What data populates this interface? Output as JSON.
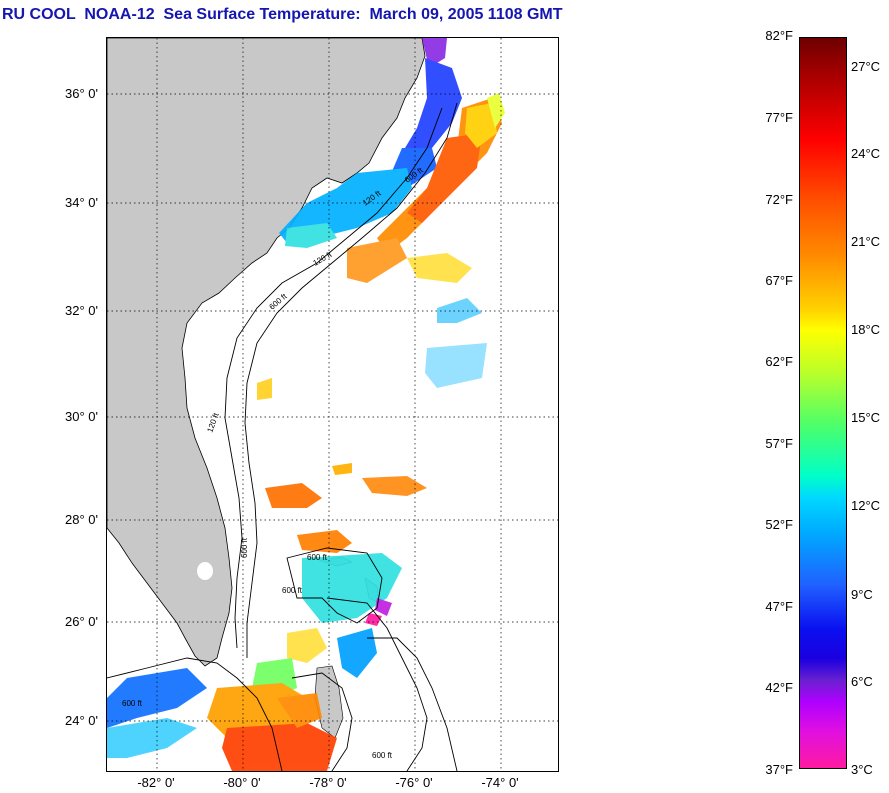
{
  "title": "RU COOL  NOAA-12  Sea Surface Temperature:  March 09, 2005 1108 GMT",
  "map": {
    "lat_labels": [
      "36° 0'",
      "34° 0'",
      "32° 0'",
      "30° 0'",
      "28° 0'",
      "26° 0'",
      "24° 0'"
    ],
    "lon_labels": [
      "-82° 0'",
      "-80° 0'",
      "-78° 0'",
      "-76° 0'",
      "-74° 0'"
    ],
    "contour_labels": [
      "120 ft",
      "600 ft",
      "600 ft",
      "120 ft",
      "600 ft",
      "600 ft",
      "600 ft",
      "600 ft",
      "120 ft",
      "600 ft"
    ],
    "colors": {
      "land": "#c8c8c8",
      "ocean_no_data": "#ffffff",
      "contour": "#000000",
      "title": "#1515b0"
    }
  },
  "colorbar": {
    "fahrenheit_labels": [
      "82°F",
      "77°F",
      "72°F",
      "67°F",
      "62°F",
      "57°F",
      "52°F",
      "47°F",
      "42°F",
      "37°F"
    ],
    "celsius_labels": [
      "27°C",
      "24°C",
      "21°C",
      "18°C",
      "15°C",
      "12°C",
      "9°C",
      "6°C",
      "3°C"
    ]
  }
}
